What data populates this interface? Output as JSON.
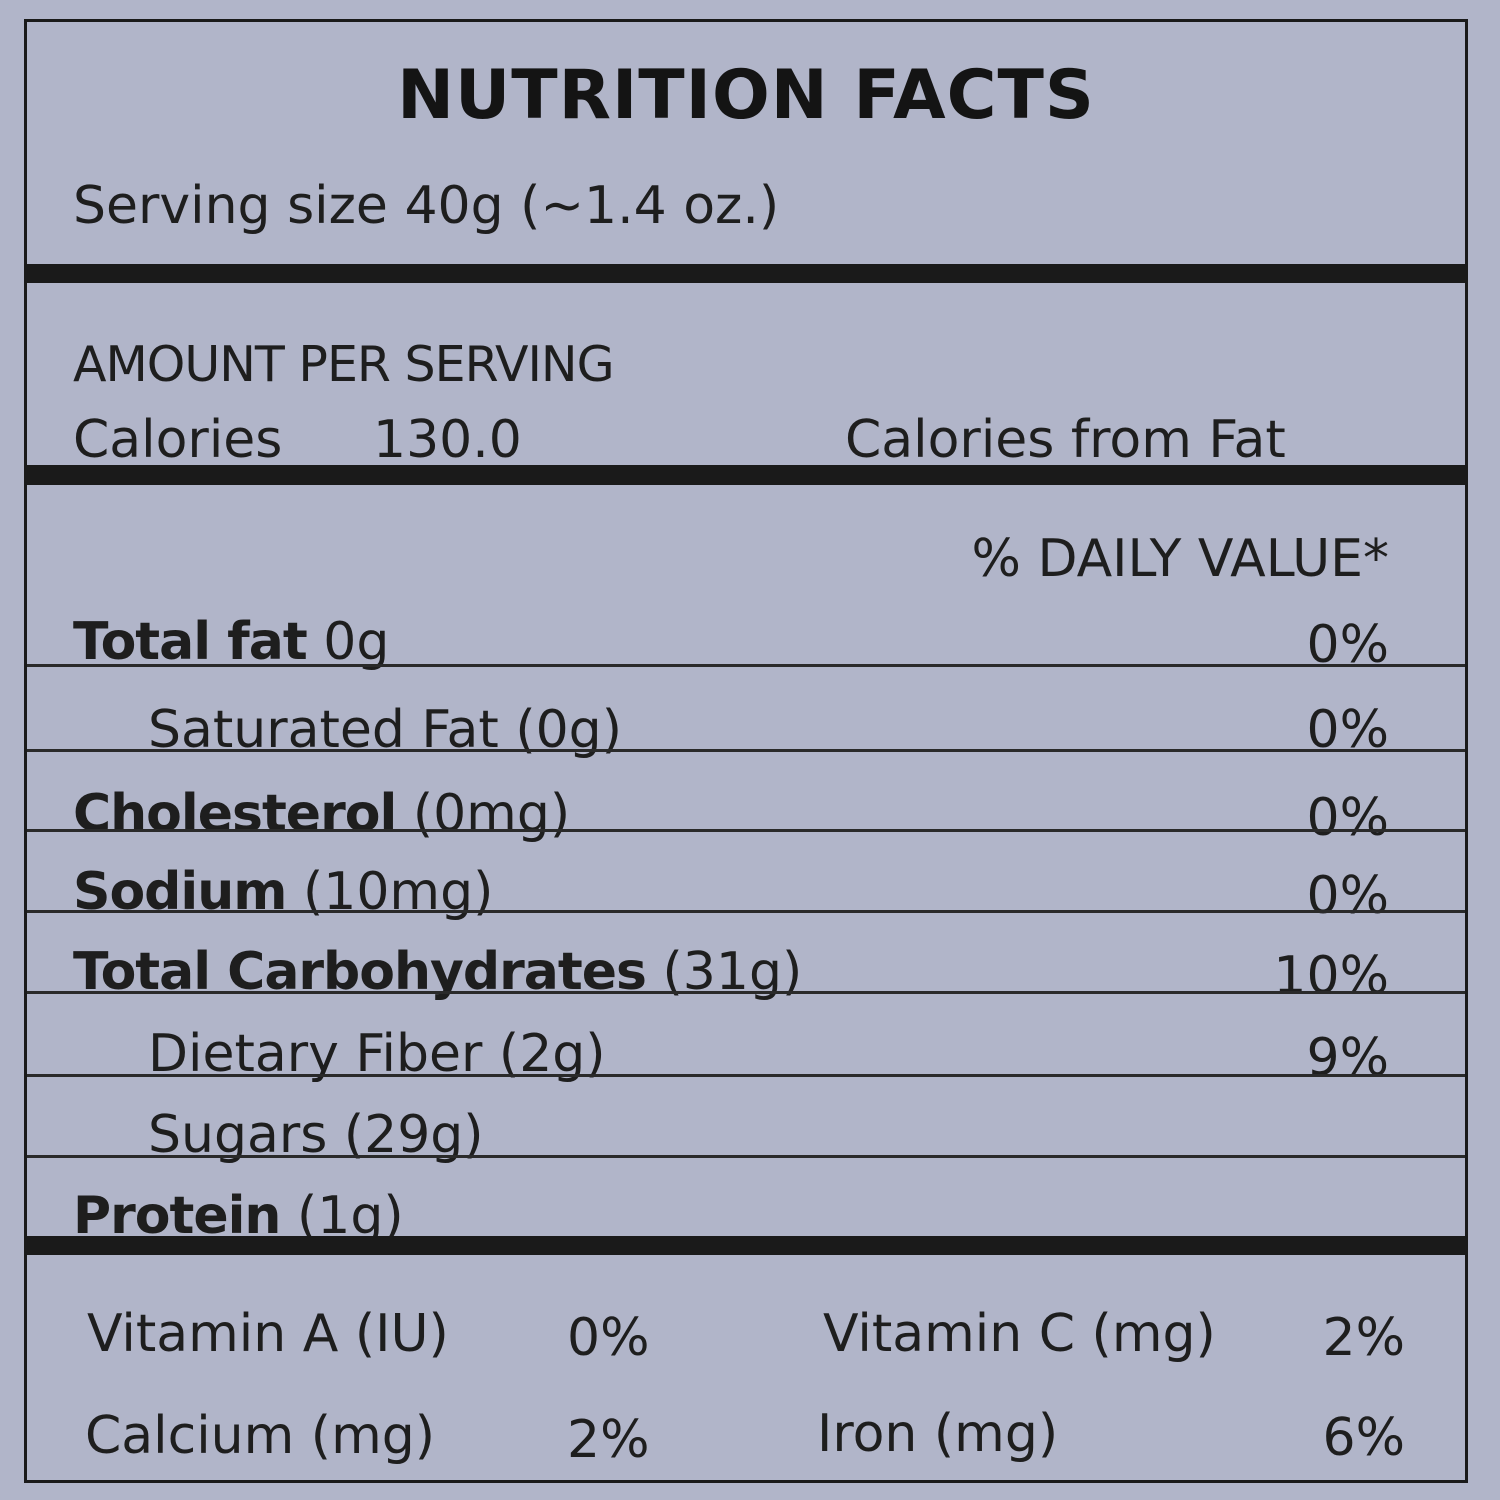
{
  "title": "NUTRITION FACTS",
  "serving_size": "Serving size 40g (~1.4 oz.)",
  "amount_per_serving": "AMOUNT PER SERVING",
  "calories": {
    "label": "Calories",
    "value": "130.0",
    "from_fat_label": "Calories from Fat"
  },
  "daily_value_header": "% DAILY VALUE*",
  "nutrients": [
    {
      "name": "Total fat",
      "amount": "0g",
      "dv": "0%"
    },
    {
      "name": "Saturated Fat",
      "amount": "(0g)",
      "dv": "0%"
    },
    {
      "name": "Cholesterol",
      "amount": "(0mg)",
      "dv": "0%"
    },
    {
      "name": "Sodium",
      "amount": "(10mg)",
      "dv": "0%"
    },
    {
      "name": "Total Carbohydrates",
      "amount": "(31g)",
      "dv": "10%"
    },
    {
      "name": "Dietary Fiber",
      "amount": "(2g)",
      "dv": "9%"
    },
    {
      "name": "Sugars",
      "amount": "(29g)",
      "dv": ""
    },
    {
      "name": "Protein",
      "amount": "(1g)",
      "dv": ""
    }
  ],
  "vitamins": [
    {
      "name": "Vitamin A (IU)",
      "dv": "0%"
    },
    {
      "name": "Vitamin C (mg)",
      "dv": "2%"
    },
    {
      "name": "Calcium (mg)",
      "dv": "2%"
    },
    {
      "name": "Iron (mg)",
      "dv": "6%"
    }
  ]
}
